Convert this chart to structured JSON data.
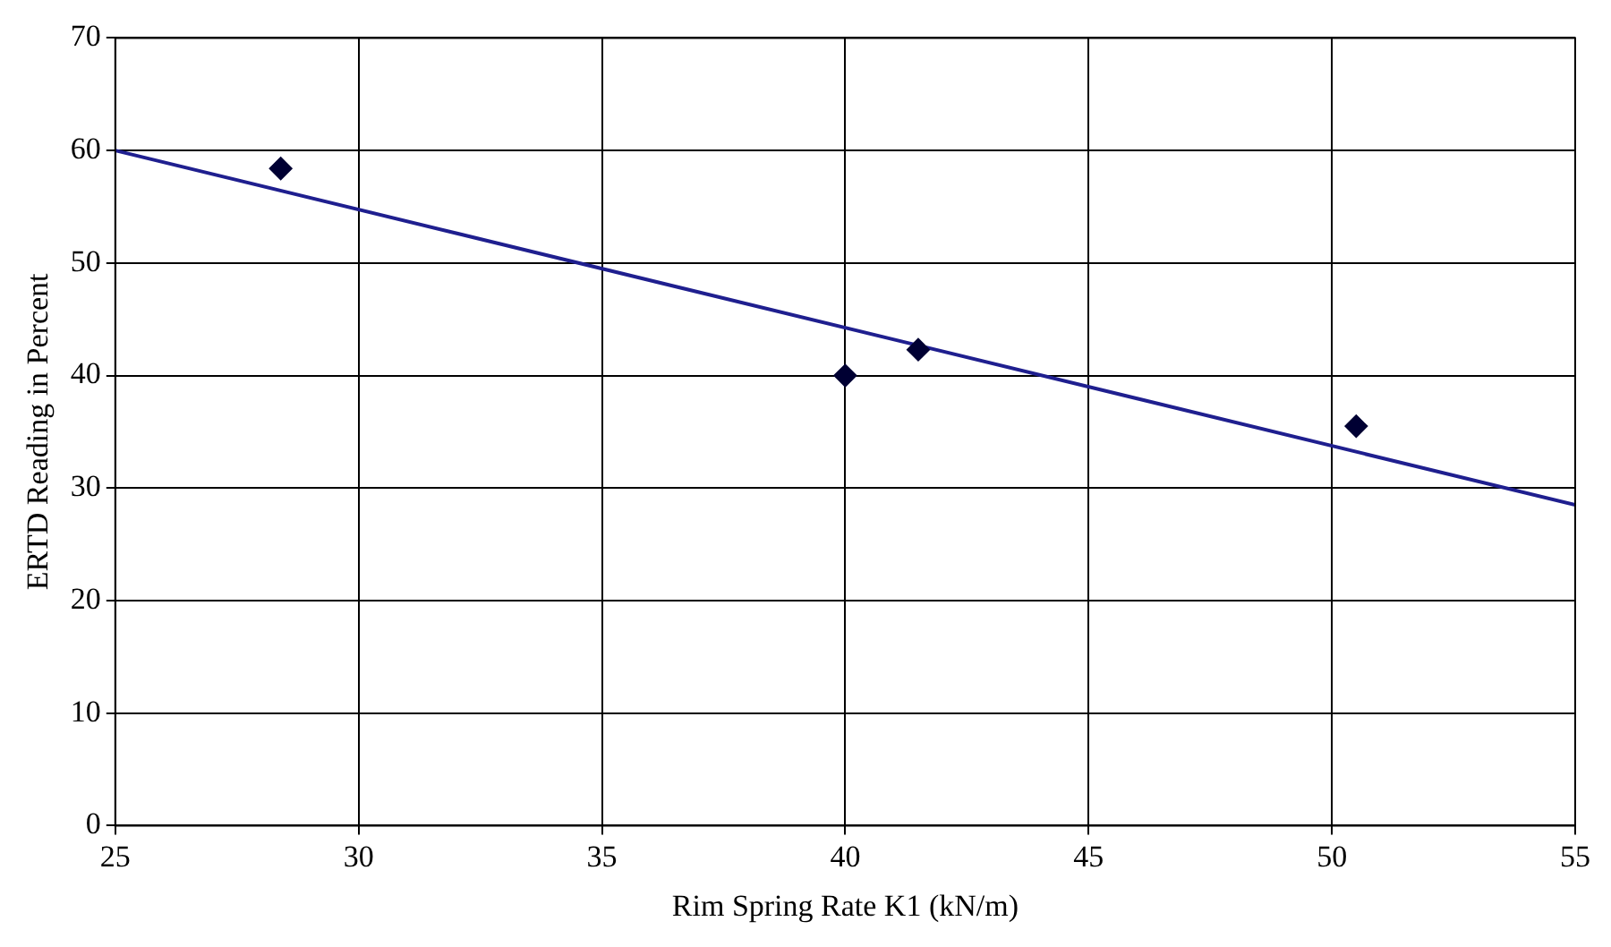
{
  "chart_data": {
    "type": "scatter",
    "xlabel": "Rim Spring Rate K1 (kN/m)",
    "ylabel": "ERTD Reading in Percent",
    "series": [
      {
        "color": "#000033",
        "marker": "diamond",
        "x": [
          28.4,
          40,
          41.5,
          50.5
        ],
        "values": [
          58.4,
          40,
          42.3,
          35.5
        ]
      },
      {
        "type": "line",
        "color": "#1f1f8f",
        "x": [
          25,
          55
        ],
        "values": [
          60,
          28.5
        ]
      }
    ],
    "xlim": [
      25,
      55
    ],
    "xticks": [
      25,
      30,
      35,
      40,
      45,
      50,
      55
    ],
    "ylim": [
      0,
      70
    ],
    "yticks": [
      0,
      10,
      20,
      30,
      40,
      50,
      60,
      70
    ],
    "grid": true
  }
}
